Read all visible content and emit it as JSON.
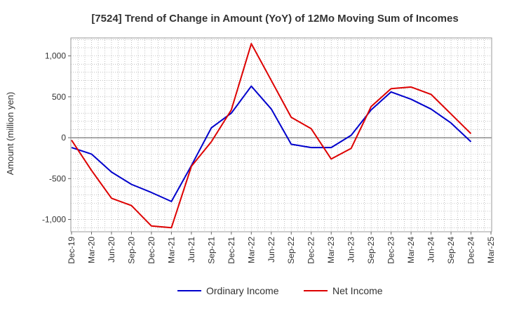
{
  "chart_data": {
    "type": "line",
    "title": "[7524]  Trend of Change in Amount (YoY) of 12Mo Moving Sum of Incomes",
    "xlabel": "",
    "ylabel": "Amount (million yen)",
    "ylim": [
      -1150,
      1220
    ],
    "yticks": [
      -1000,
      -500,
      0,
      500,
      1000
    ],
    "ytick_labels": [
      "-1,000",
      "-500",
      "0",
      "500",
      "1,000"
    ],
    "categories": [
      "Dec-19",
      "Mar-20",
      "Jun-20",
      "Sep-20",
      "Dec-20",
      "Mar-21",
      "Jun-21",
      "Sep-21",
      "Dec-21",
      "Mar-22",
      "Jun-22",
      "Sep-22",
      "Dec-22",
      "Mar-23",
      "Jun-23",
      "Sep-23",
      "Dec-23",
      "Mar-24",
      "Jun-24",
      "Sep-24",
      "Dec-24",
      "Mar-25"
    ],
    "grid": true,
    "legend_position": "bottom-center",
    "series": [
      {
        "name": "Ordinary Income",
        "color": "#0000cc",
        "values": [
          -120,
          -200,
          -420,
          -570,
          -670,
          -780,
          -340,
          120,
          300,
          630,
          350,
          -80,
          -120,
          -120,
          30,
          340,
          560,
          470,
          350,
          180,
          -50,
          null
        ]
      },
      {
        "name": "Net Income",
        "color": "#dd0000",
        "values": [
          -30,
          -400,
          -740,
          -830,
          -1080,
          -1100,
          -350,
          -50,
          340,
          1150,
          700,
          250,
          110,
          -260,
          -130,
          380,
          600,
          620,
          530,
          290,
          50,
          null
        ]
      }
    ]
  }
}
